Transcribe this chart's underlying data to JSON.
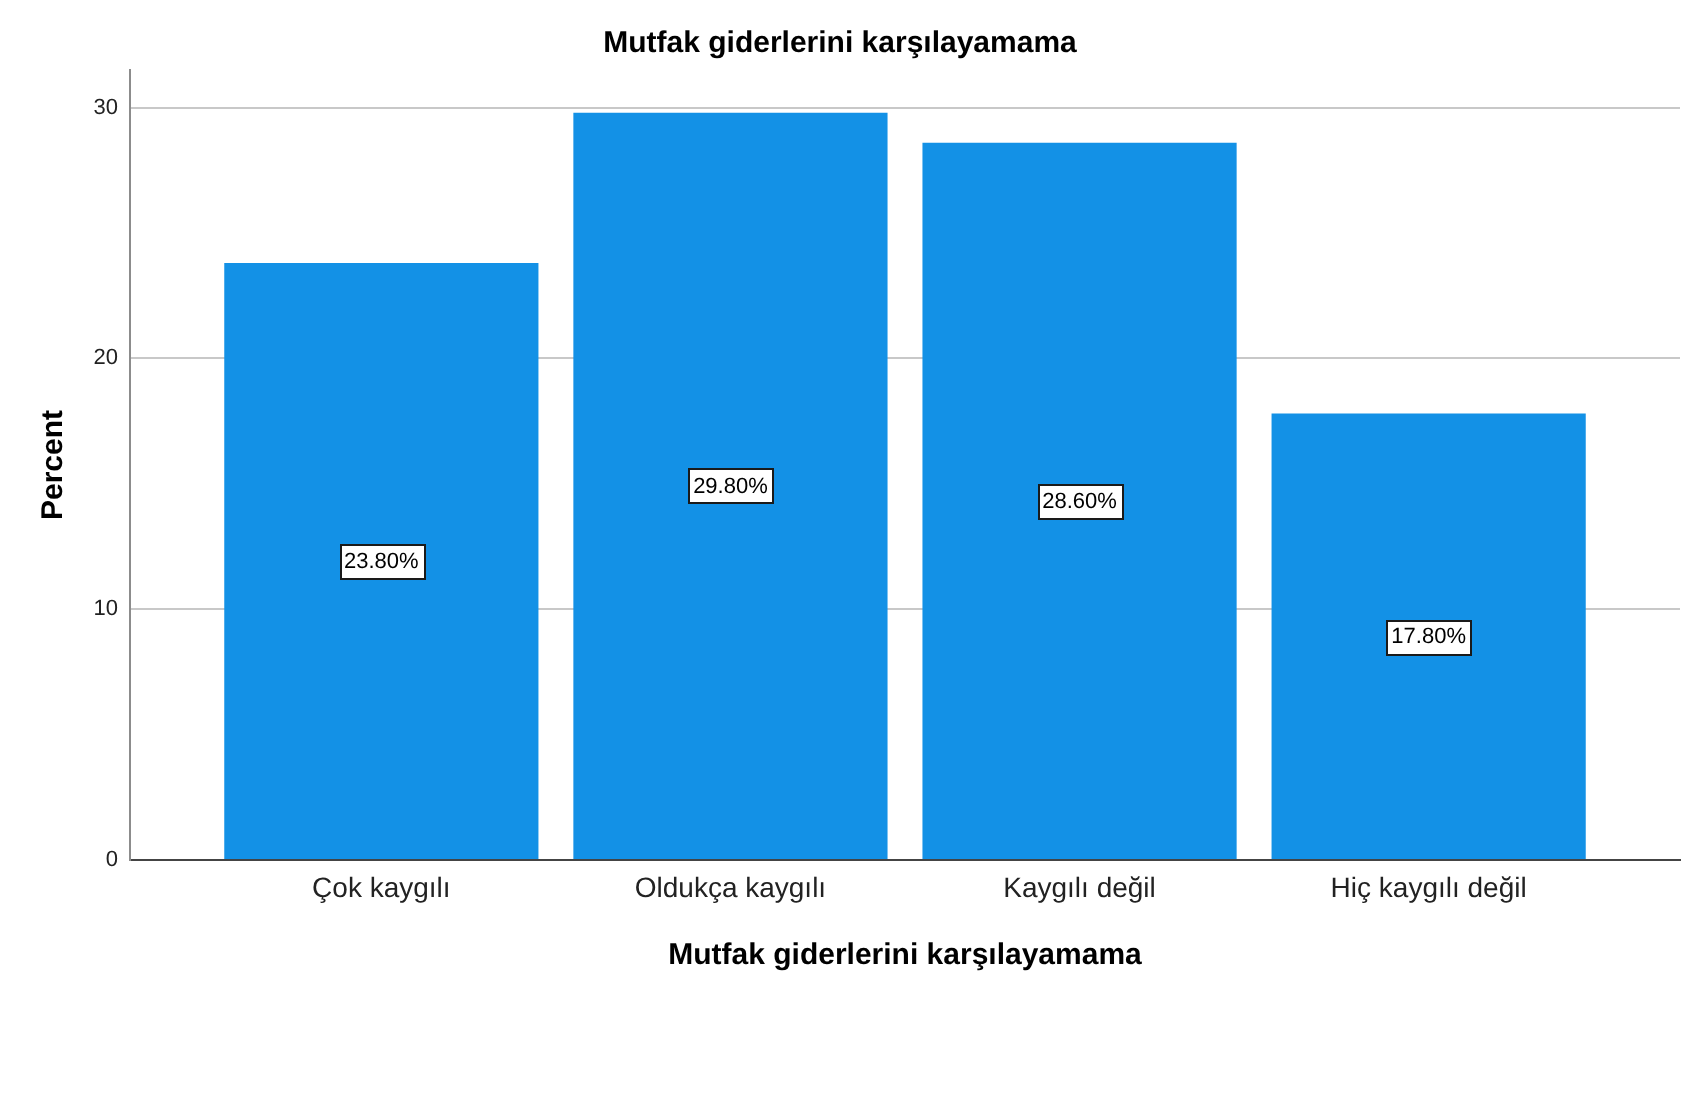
{
  "chart_data": {
    "type": "bar",
    "title": "Mutfak giderlerini karşılayamama",
    "xlabel": "Mutfak giderlerini karşılayamama",
    "ylabel": "Percent",
    "categories": [
      "Çok kaygılı",
      "Oldukça kaygılı",
      "Kaygılı değil",
      "Hiç kaygılı değil"
    ],
    "values": [
      23.8,
      29.8,
      28.6,
      17.8
    ],
    "value_labels": [
      "23.80%",
      "29.80%",
      "28.60%",
      "17.80%"
    ],
    "color": "#1391e6",
    "ylim": [
      0,
      31.5
    ],
    "yticks": [
      0,
      10,
      20,
      30
    ],
    "grid": "y"
  }
}
